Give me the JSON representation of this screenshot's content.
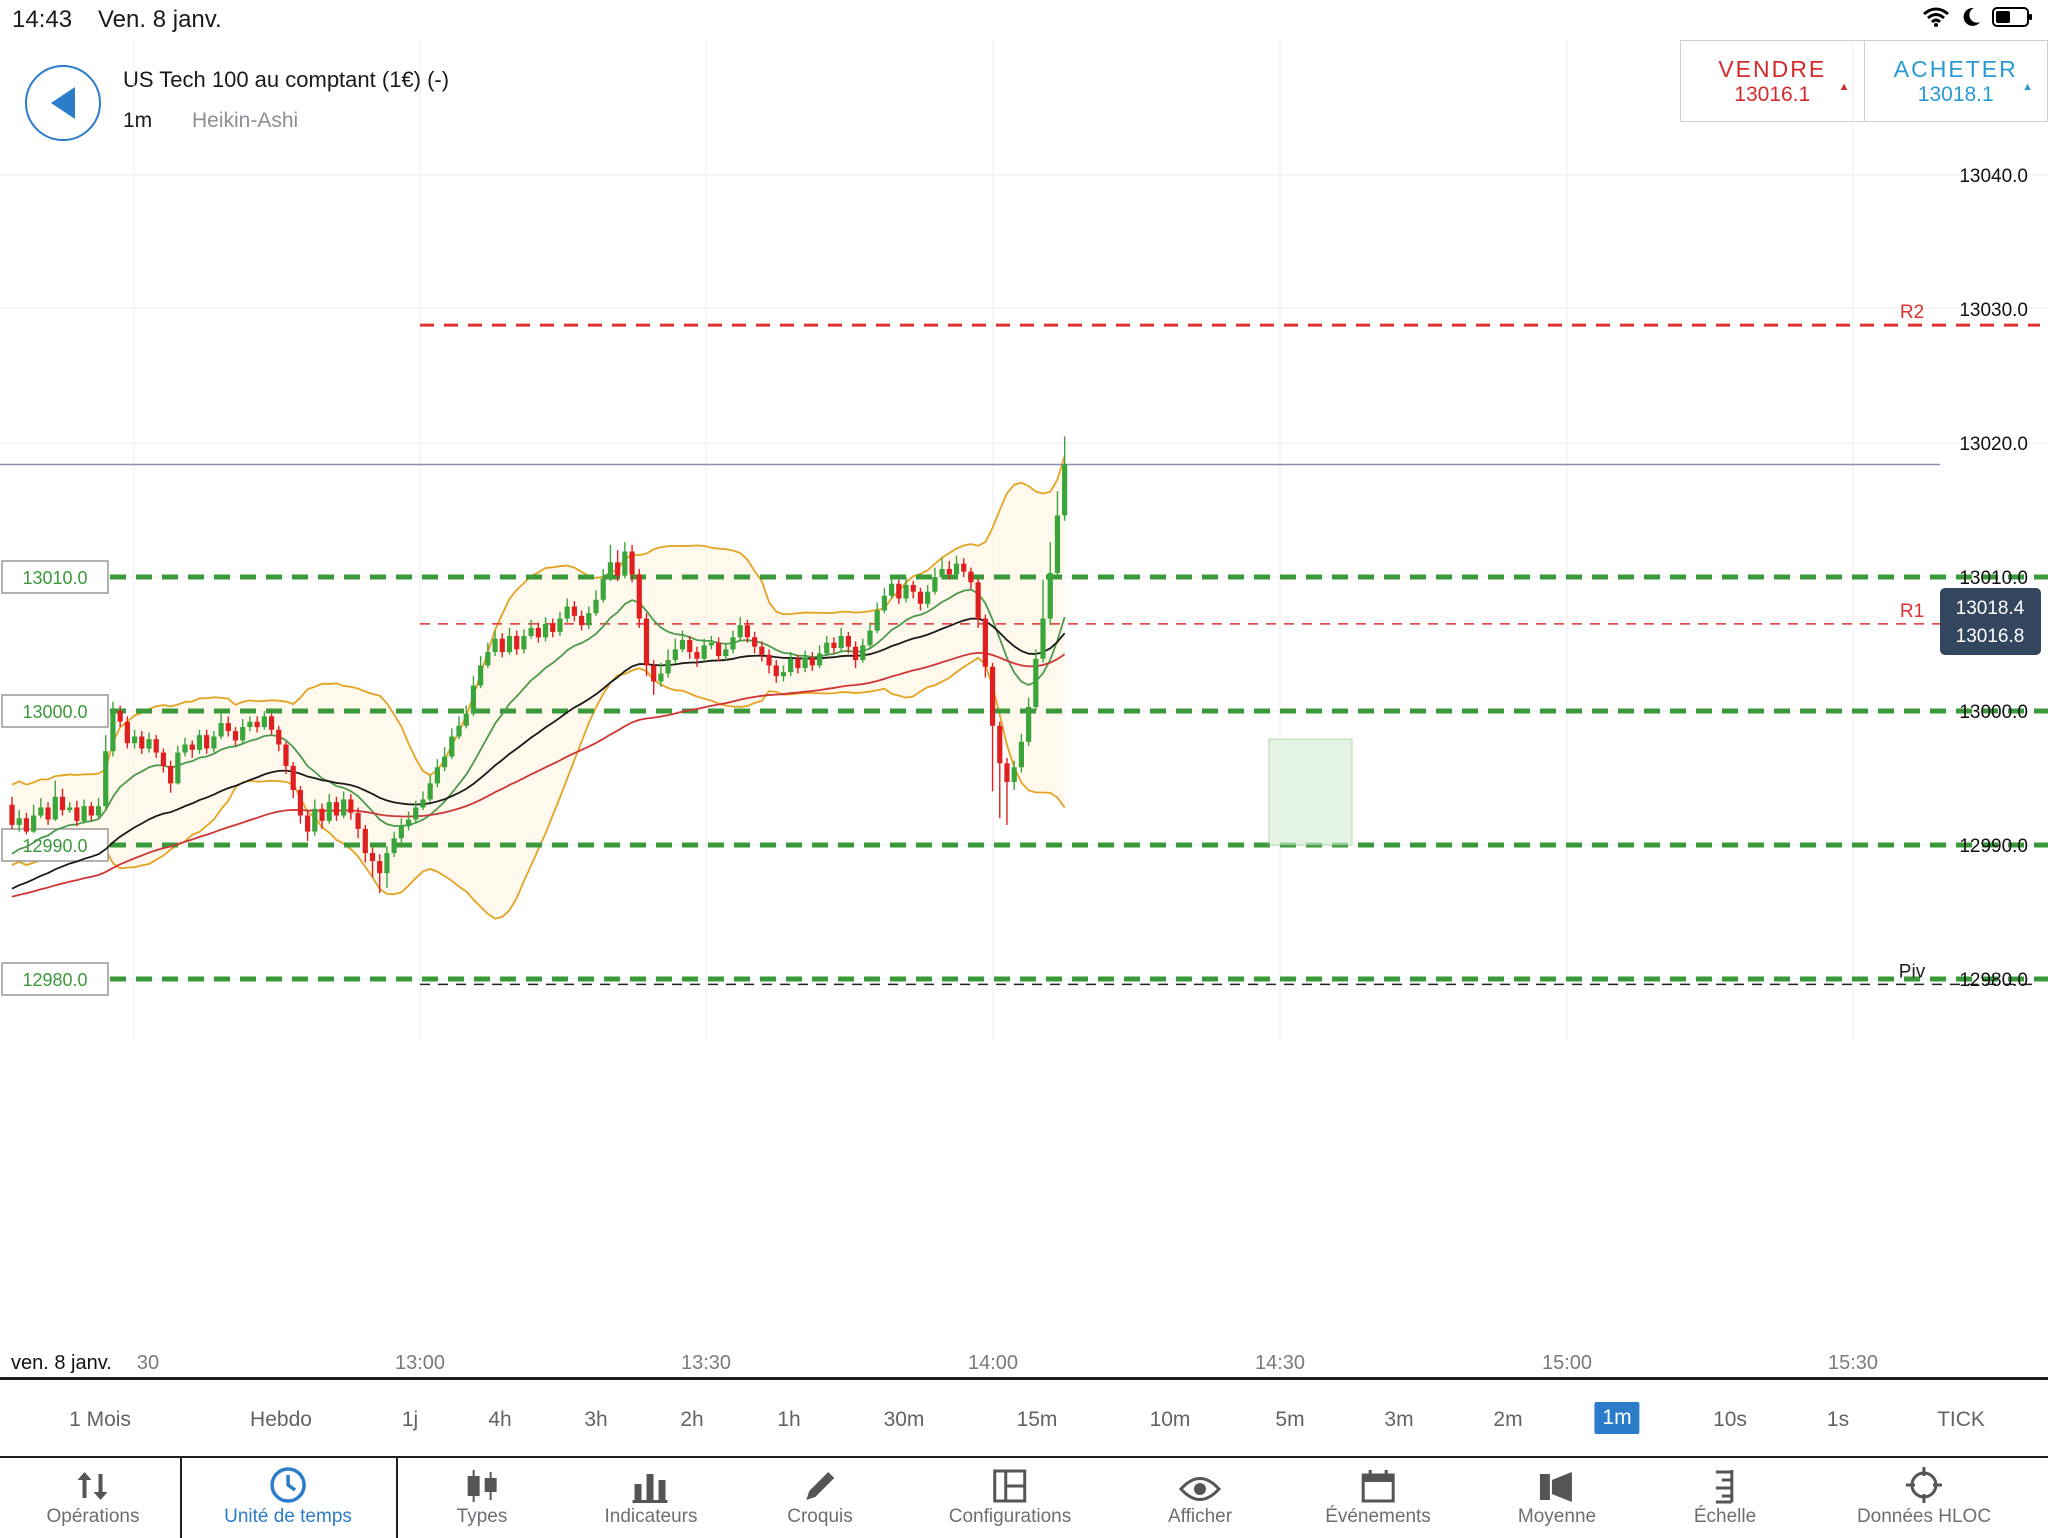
{
  "status": {
    "time": "14:43",
    "date": "Ven. 8 janv."
  },
  "header": {
    "instrument": "US Tech 100 au comptant (1€) (-)",
    "timeframe": "1m",
    "chart_type": "Heikin-Ashi"
  },
  "trade": {
    "sell_label": "VENDRE",
    "sell_price": "13016.1",
    "buy_label": "ACHETER",
    "buy_price": "13018.1",
    "sell_color": "#d32a2a",
    "buy_color": "#2a9bd0"
  },
  "chart_data": {
    "type": "candlestick",
    "title": "",
    "ylim": [
      12972,
      13050
    ],
    "y_ticks": [
      "13040.0",
      "13030.0",
      "13020.0",
      "13010.0",
      "13000.0",
      "12990.0",
      "12980.0"
    ],
    "x_start_label": "ven. 8 janv.",
    "x_ticks": [
      "30",
      "13:00",
      "13:30",
      "14:00",
      "14:30",
      "15:00",
      "15:30"
    ],
    "price_tags": [
      "13018.4",
      "13016.8"
    ],
    "alert_levels": [
      {
        "label": "13010.0",
        "value": 13010
      },
      {
        "label": "13000.0",
        "value": 13000
      },
      {
        "label": "12990.0",
        "value": 12990
      },
      {
        "label": "12980.0",
        "value": 12980
      }
    ],
    "pivots": [
      {
        "name": "R2",
        "value": 13028.8,
        "color": "#e03030"
      },
      {
        "name": "R1",
        "value": 13006.5,
        "color": "#e03030"
      },
      {
        "name": "Piv",
        "value": 12979.6,
        "color": "#222222"
      }
    ],
    "current_price": 13018.4,
    "candles": [
      [
        12993.0,
        12991.5,
        12993.6,
        12991.2
      ],
      [
        12991.5,
        12992.0,
        12992.6,
        12991.0
      ],
      [
        12992.0,
        12991.0,
        12992.4,
        12990.8
      ],
      [
        12991.0,
        12992.2,
        12993.0,
        12990.9
      ],
      [
        12992.2,
        12992.8,
        12993.5,
        12992.0
      ],
      [
        12992.8,
        12991.9,
        12993.2,
        12991.5
      ],
      [
        12991.9,
        12993.6,
        12994.8,
        12991.8
      ],
      [
        12993.6,
        12992.6,
        12994.2,
        12992.2
      ],
      [
        12992.6,
        12992.8,
        12993.2,
        12992.4
      ],
      [
        12992.8,
        12991.8,
        12993.3,
        12991.4
      ],
      [
        12991.8,
        12992.9,
        12993.4,
        12991.6
      ],
      [
        12992.9,
        12992.2,
        12993.2,
        12991.8
      ],
      [
        12992.2,
        12992.9,
        12993.5,
        12992.0
      ],
      [
        12992.9,
        12997.0,
        12998.2,
        12992.7
      ],
      [
        12997.0,
        13000.0,
        13000.7,
        12996.6
      ],
      [
        13000.0,
        12999.2,
        13000.4,
        12998.8
      ],
      [
        12999.2,
        12997.6,
        12999.6,
        12997.2
      ],
      [
        12997.6,
        12998.1,
        12998.6,
        12997.2
      ],
      [
        12998.1,
        12997.2,
        12998.5,
        12996.8
      ],
      [
        12997.2,
        12997.9,
        12998.4,
        12996.9
      ],
      [
        12997.9,
        12996.9,
        12998.2,
        12996.5
      ],
      [
        12996.9,
        12995.9,
        12997.2,
        12995.4
      ],
      [
        12995.9,
        12994.6,
        12996.3,
        12993.9
      ],
      [
        12994.6,
        12996.9,
        12997.4,
        12994.5
      ],
      [
        12996.9,
        12997.5,
        12998.0,
        12996.6
      ],
      [
        12997.5,
        12997.1,
        12997.8,
        12996.5
      ],
      [
        12997.1,
        12998.2,
        12998.6,
        12996.8
      ],
      [
        12998.2,
        12997.2,
        12998.6,
        12996.8
      ],
      [
        12997.2,
        12998.1,
        12998.5,
        12996.9
      ],
      [
        12998.1,
        12999.1,
        12999.8,
        12997.9
      ],
      [
        12999.1,
        12998.5,
        12999.6,
        12998.1
      ],
      [
        12998.5,
        12997.8,
        12998.8,
        12997.4
      ],
      [
        12997.8,
        12998.8,
        12999.4,
        12997.6
      ],
      [
        12998.8,
        12999.2,
        12999.6,
        12998.5
      ],
      [
        12999.2,
        12998.8,
        12999.6,
        12998.4
      ],
      [
        12998.8,
        12999.6,
        13000.0,
        12998.6
      ],
      [
        12999.6,
        12998.6,
        12999.8,
        12998.2
      ],
      [
        12998.6,
        12997.5,
        12998.9,
        12997.0
      ],
      [
        12997.5,
        12995.9,
        12997.7,
        12995.3
      ],
      [
        12995.9,
        12994.1,
        12996.2,
        12993.5
      ],
      [
        12994.1,
        12992.2,
        12994.4,
        12991.6
      ],
      [
        12992.2,
        12991.0,
        12992.5,
        12990.3
      ],
      [
        12991.0,
        12992.7,
        12993.4,
        12990.7
      ],
      [
        12992.7,
        12991.8,
        12993.1,
        12991.2
      ],
      [
        12991.8,
        12993.2,
        12993.8,
        12991.6
      ],
      [
        12993.2,
        12992.2,
        12993.6,
        12991.8
      ],
      [
        12992.2,
        12993.4,
        12994.0,
        12992.0
      ],
      [
        12993.4,
        12992.4,
        12993.8,
        12991.9
      ],
      [
        12992.4,
        12991.2,
        12992.8,
        12990.5
      ],
      [
        12991.2,
        12989.4,
        12991.5,
        12988.7
      ],
      [
        12989.4,
        12988.8,
        12989.8,
        12987.6
      ],
      [
        12988.8,
        12987.9,
        12989.3,
        12986.4
      ],
      [
        12987.9,
        12989.4,
        12989.9,
        12986.8
      ],
      [
        12989.4,
        12990.5,
        12991.0,
        12989.1
      ],
      [
        12990.5,
        12991.4,
        12992.0,
        12990.2
      ],
      [
        12991.4,
        12991.9,
        12992.5,
        12991.1
      ],
      [
        12991.9,
        12992.8,
        12993.3,
        12991.6
      ],
      [
        12992.8,
        12993.4,
        12994.0,
        12992.6
      ],
      [
        12993.4,
        12994.6,
        12995.2,
        12993.2
      ],
      [
        12994.6,
        12995.8,
        12996.4,
        12994.3
      ],
      [
        12995.8,
        12996.6,
        12997.3,
        12995.5
      ],
      [
        12996.6,
        12998.1,
        12998.7,
        12996.4
      ],
      [
        12998.1,
        12998.9,
        12999.6,
        12997.9
      ],
      [
        12998.9,
        12999.8,
        13000.4,
        12998.7
      ],
      [
        12999.8,
        13001.9,
        13002.6,
        12999.6
      ],
      [
        13001.9,
        13003.4,
        13004.1,
        13001.7
      ],
      [
        13003.4,
        13004.4,
        13005.1,
        13003.2
      ],
      [
        13004.4,
        13005.4,
        13006.0,
        13004.1
      ],
      [
        13005.4,
        13004.4,
        13005.8,
        13004.0
      ],
      [
        13004.4,
        13005.6,
        13006.2,
        13004.2
      ],
      [
        13005.6,
        13004.6,
        13006.0,
        13004.2
      ],
      [
        13004.6,
        13005.6,
        13006.1,
        13004.3
      ],
      [
        13005.6,
        13006.2,
        13006.8,
        13005.4
      ],
      [
        13006.2,
        13005.5,
        13006.6,
        13005.1
      ],
      [
        13005.5,
        13006.5,
        13007.0,
        13005.2
      ],
      [
        13006.5,
        13005.9,
        13006.9,
        13005.5
      ],
      [
        13005.9,
        13006.9,
        13007.4,
        13005.6
      ],
      [
        13006.9,
        13007.8,
        13008.4,
        13006.6
      ],
      [
        13007.8,
        13007.1,
        13008.2,
        13006.7
      ],
      [
        13007.1,
        13006.4,
        13007.5,
        13006.0
      ],
      [
        13006.4,
        13007.3,
        13007.8,
        13006.1
      ],
      [
        13007.3,
        13008.3,
        13009.0,
        13007.1
      ],
      [
        13008.3,
        13009.9,
        13010.6,
        13008.1
      ],
      [
        13009.9,
        13011.1,
        13012.4,
        13009.7
      ],
      [
        13011.1,
        13010.1,
        13012.0,
        13009.7
      ],
      [
        13010.1,
        13011.9,
        13012.6,
        13009.9
      ],
      [
        13011.9,
        13010.2,
        13012.4,
        13009.6
      ],
      [
        13010.2,
        13006.9,
        13010.6,
        13006.2
      ],
      [
        13006.9,
        13003.4,
        13007.3,
        13002.6
      ],
      [
        13003.4,
        13002.2,
        13003.8,
        13001.2
      ],
      [
        13002.2,
        13002.8,
        13003.6,
        13001.8
      ],
      [
        13002.8,
        13003.8,
        13004.6,
        13002.5
      ],
      [
        13003.8,
        13004.6,
        13005.4,
        13003.5
      ],
      [
        13004.6,
        13005.3,
        13006.0,
        13004.4
      ],
      [
        13005.3,
        13004.4,
        13005.6,
        13003.9
      ],
      [
        13004.4,
        13003.9,
        13004.8,
        13003.3
      ],
      [
        13003.9,
        13004.9,
        13005.4,
        13003.7
      ],
      [
        13004.9,
        13005.1,
        13005.6,
        13004.6
      ],
      [
        13005.1,
        13004.1,
        13005.5,
        13003.7
      ],
      [
        13004.1,
        13004.6,
        13005.0,
        13003.8
      ],
      [
        13004.6,
        13005.5,
        13006.0,
        13004.3
      ],
      [
        13005.5,
        13006.4,
        13007.0,
        13005.2
      ],
      [
        13006.4,
        13005.5,
        13006.8,
        13005.1
      ],
      [
        13005.5,
        13004.8,
        13005.9,
        13004.3
      ],
      [
        13004.8,
        13004.2,
        13005.2,
        13003.7
      ],
      [
        13004.2,
        13003.4,
        13004.6,
        13002.8
      ],
      [
        13003.4,
        13002.6,
        13003.8,
        13002.1
      ],
      [
        13002.6,
        13002.9,
        13003.4,
        13002.2
      ],
      [
        13002.9,
        13003.9,
        13004.4,
        13002.6
      ],
      [
        13003.9,
        13003.2,
        13004.2,
        13002.8
      ],
      [
        13003.2,
        13004.0,
        13004.5,
        13002.9
      ],
      [
        13004.0,
        13003.4,
        13004.4,
        13003.0
      ],
      [
        13003.4,
        13004.3,
        13004.9,
        13003.2
      ],
      [
        13004.3,
        13005.1,
        13005.6,
        13004.1
      ],
      [
        13005.1,
        13004.7,
        13005.5,
        13004.3
      ],
      [
        13004.7,
        13005.6,
        13006.2,
        13004.5
      ],
      [
        13005.6,
        13004.8,
        13005.9,
        13004.3
      ],
      [
        13004.8,
        13003.8,
        13005.2,
        13003.2
      ],
      [
        13003.8,
        13004.9,
        13005.4,
        13003.6
      ],
      [
        13004.9,
        13006.0,
        13006.6,
        13004.7
      ],
      [
        13006.0,
        13007.5,
        13008.1,
        13005.8
      ],
      [
        13007.5,
        13008.6,
        13009.2,
        13007.3
      ],
      [
        13008.6,
        13009.5,
        13010.1,
        13008.4
      ],
      [
        13009.5,
        13008.4,
        13009.8,
        13008.0
      ],
      [
        13008.4,
        13009.4,
        13010.0,
        13008.1
      ],
      [
        13009.4,
        13008.9,
        13009.7,
        13008.4
      ],
      [
        13008.9,
        13008.0,
        13009.2,
        13007.5
      ],
      [
        13008.0,
        13008.9,
        13009.4,
        13007.7
      ],
      [
        13008.9,
        13010.0,
        13010.7,
        13008.7
      ],
      [
        13010.0,
        13010.6,
        13011.4,
        13009.8
      ],
      [
        13010.6,
        13010.2,
        13011.2,
        13009.8
      ],
      [
        13010.2,
        13011.0,
        13011.6,
        13009.9
      ],
      [
        13011.0,
        13010.4,
        13011.4,
        13010.0
      ],
      [
        13010.4,
        13009.6,
        13010.7,
        13009.1
      ],
      [
        13009.6,
        13006.9,
        13009.9,
        13006.2
      ],
      [
        13006.9,
        13003.3,
        13007.2,
        13002.5
      ],
      [
        13003.3,
        12998.9,
        13003.6,
        12994.0
      ],
      [
        12998.9,
        12996.1,
        12999.2,
        12992.0
      ],
      [
        12996.1,
        12994.7,
        12996.5,
        12991.5
      ],
      [
        12994.7,
        12995.8,
        12996.3,
        12994.1
      ],
      [
        12995.8,
        12997.7,
        12998.3,
        12995.4
      ],
      [
        12997.7,
        13000.3,
        13001.0,
        12997.4
      ],
      [
        13000.3,
        13003.9,
        13004.6,
        13000.0
      ],
      [
        13003.9,
        13006.9,
        13009.8,
        13003.6
      ],
      [
        13006.9,
        13010.3,
        13012.6,
        13006.4
      ],
      [
        13010.3,
        13014.6,
        13016.4,
        13009.9
      ],
      [
        13014.6,
        13018.4,
        13020.5,
        13014.2
      ]
    ]
  },
  "timeframes": [
    {
      "label": "1 Mois"
    },
    {
      "label": "Hebdo"
    },
    {
      "label": "1j"
    },
    {
      "label": "4h"
    },
    {
      "label": "3h"
    },
    {
      "label": "2h"
    },
    {
      "label": "1h"
    },
    {
      "label": "30m"
    },
    {
      "label": "15m"
    },
    {
      "label": "10m"
    },
    {
      "label": "5m"
    },
    {
      "label": "3m"
    },
    {
      "label": "2m"
    },
    {
      "label": "1m"
    },
    {
      "label": "10s"
    },
    {
      "label": "1s"
    },
    {
      "label": "TICK"
    }
  ],
  "toolbar": {
    "items": [
      {
        "label": "Opérations",
        "icon": "arrows-icon"
      },
      {
        "label": "Unité de temps",
        "icon": "clock-icon"
      },
      {
        "label": "Types",
        "icon": "candles-icon"
      },
      {
        "label": "Indicateurs",
        "icon": "bars-icon"
      },
      {
        "label": "Croquis",
        "icon": "pencil-icon"
      },
      {
        "label": "Configurations",
        "icon": "layout-icon"
      },
      {
        "label": "Afficher",
        "icon": "eye-icon"
      },
      {
        "label": "Événements",
        "icon": "calendar-icon"
      },
      {
        "label": "Moyenne",
        "icon": "speaker-icon"
      },
      {
        "label": "Échelle",
        "icon": "scale-icon"
      },
      {
        "label": "Données HLOC",
        "icon": "crosshair-icon"
      }
    ]
  },
  "colors": {
    "accent": "#2b7cc9",
    "up": "#3aa53a",
    "down": "#e02020",
    "band": "#e5a323"
  }
}
